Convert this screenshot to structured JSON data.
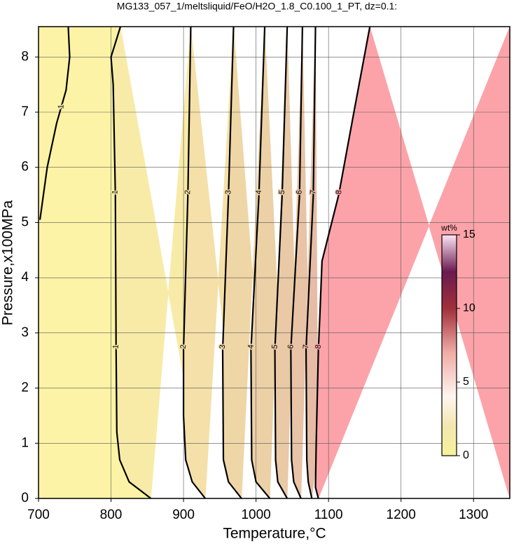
{
  "chart_data": {
    "type": "contour",
    "title": "MG133_057_1/meltsliquid/FeO/H2O_1.8_C0.100_1_PT, dz=0.1:",
    "xlabel": "Temperature,°C",
    "ylabel": "Pressure,x100MPa",
    "xlim": [
      700,
      1350
    ],
    "ylim": [
      0,
      8.55
    ],
    "xticks": [
      700,
      800,
      900,
      1000,
      1100,
      1200,
      1300
    ],
    "yticks": [
      0,
      1,
      2,
      3,
      4,
      5,
      6,
      7,
      8
    ],
    "grid": true,
    "band_colors": [
      "#fcf3a6",
      "#f8eba8",
      "#f4e0a8",
      "#efd6a6",
      "#ecd0a6",
      "#e9c9a6",
      "#e8c3a6",
      "#e6bca6",
      "#fca3a9"
    ],
    "contours": [
      {
        "level": 1,
        "P": [
          0,
          0.3,
          0.7,
          1.2,
          2.7,
          5.5,
          7.5,
          8.0,
          8.55
        ],
        "T": [
          855,
          825,
          812,
          808,
          807,
          806,
          803,
          800,
          813
        ]
      },
      {
        "level": 2,
        "P": [
          0,
          0.3,
          0.7,
          1.5,
          2.7,
          5.5,
          8.55
        ],
        "T": [
          930,
          912,
          903,
          900,
          900,
          906,
          910
        ]
      },
      {
        "level": 3,
        "P": [
          0,
          0.3,
          0.7,
          2.7,
          5.5,
          8.55
        ],
        "T": [
          980,
          962,
          955,
          954,
          962,
          969
        ]
      },
      {
        "level": 4,
        "P": [
          0,
          0.3,
          0.7,
          2.7,
          5.5,
          8.55
        ],
        "T": [
          1019,
          1000,
          994,
          993,
          1004,
          1012
        ]
      },
      {
        "level": 5,
        "P": [
          0,
          0.3,
          0.7,
          2.7,
          5.5,
          8.55
        ],
        "T": [
          1043,
          1030,
          1027,
          1026,
          1036,
          1043
        ]
      },
      {
        "level": 6,
        "P": [
          0,
          0.3,
          0.7,
          2.7,
          5.5,
          8.55
        ],
        "T": [
          1062,
          1052,
          1049,
          1048,
          1060,
          1064
        ]
      },
      {
        "level": 7,
        "P": [
          0,
          0.3,
          0.7,
          2.7,
          5.5,
          8.55
        ],
        "T": [
          1077,
          1072,
          1070,
          1069,
          1079,
          1082
        ]
      },
      {
        "level": 8,
        "P": [
          0,
          0.2,
          1,
          2.7,
          3.3,
          4.3,
          5.5,
          7,
          8.55
        ],
        "T": [
          1086,
          1082,
          1083,
          1086,
          1088,
          1091,
          1114,
          1135,
          1157
        ]
      }
    ],
    "extra_contours": [
      {
        "level": 1,
        "P": [
          5.05,
          6,
          6.8,
          7.4,
          8,
          8.55
        ],
        "T": [
          702,
          712,
          725,
          738,
          743,
          741
        ]
      }
    ],
    "colorbar": {
      "title": "wt%",
      "lim": [
        0,
        15
      ],
      "ticks": [
        0,
        5,
        10,
        15
      ],
      "stops": [
        {
          "value": 0,
          "color": "#f6f39a"
        },
        {
          "value": 2,
          "color": "#f3e6b0"
        },
        {
          "value": 4,
          "color": "#fdf6f0"
        },
        {
          "value": 7,
          "color": "#f0aca6"
        },
        {
          "value": 10,
          "color": "#a0303a"
        },
        {
          "value": 12.5,
          "color": "#6a1a50"
        },
        {
          "value": 15,
          "color": "#fde6f5"
        }
      ]
    }
  }
}
